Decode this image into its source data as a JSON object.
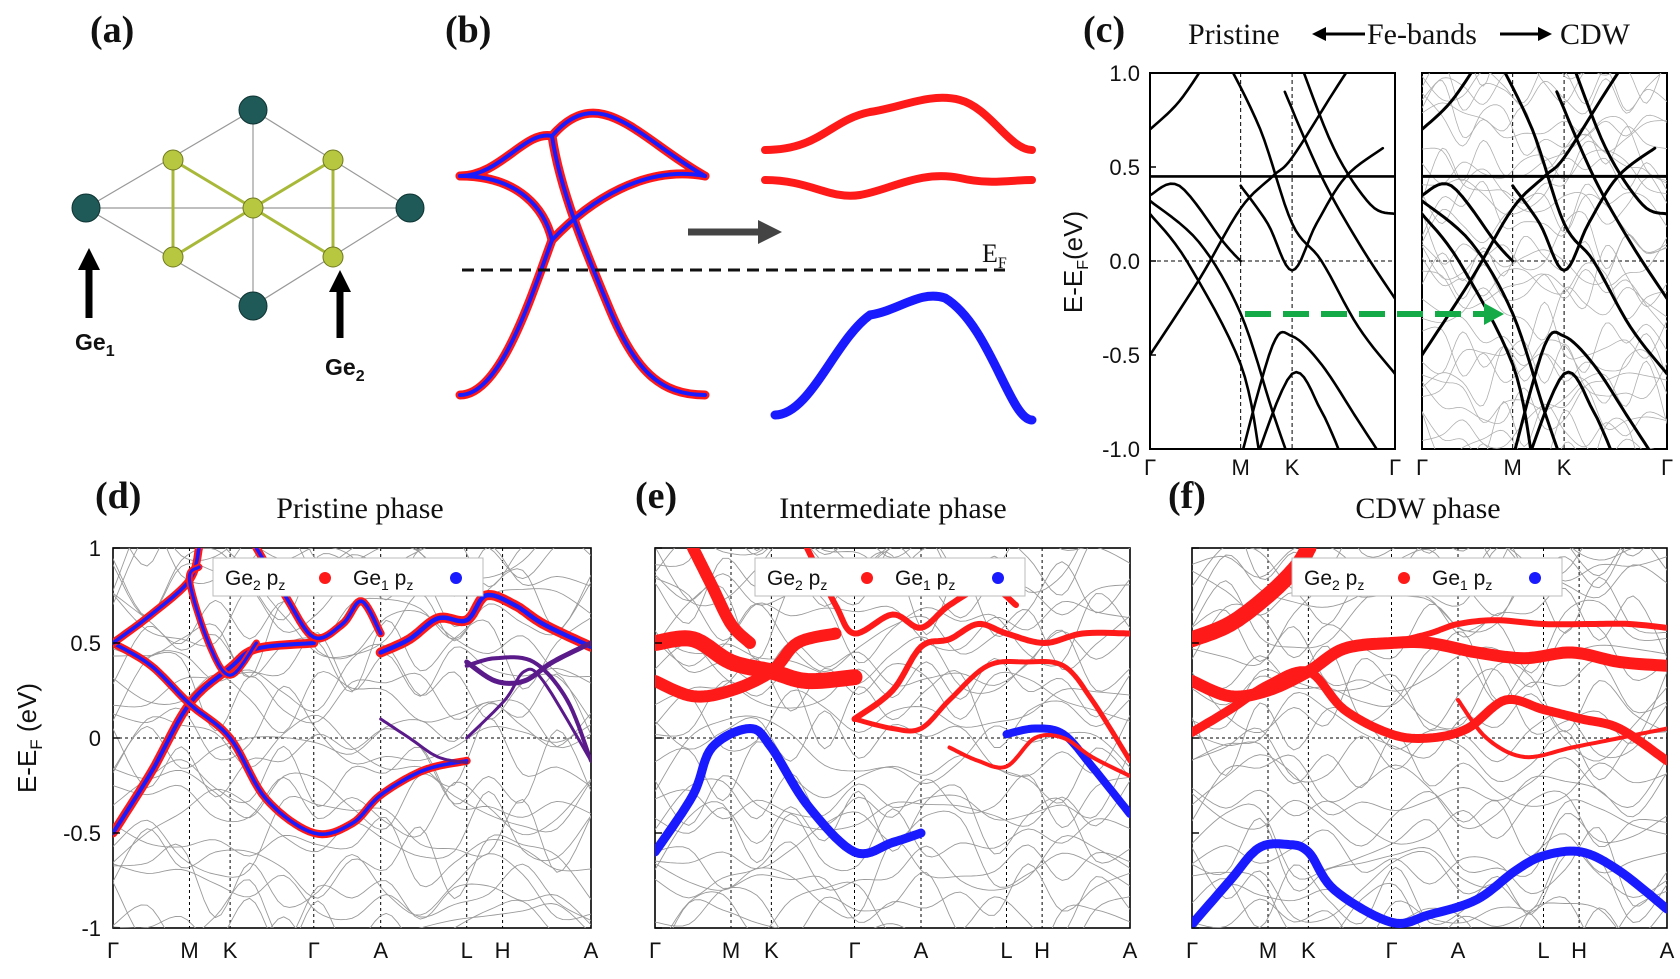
{
  "panels": {
    "a": {
      "label": "(a)",
      "atom_labels": {
        "ge1": "Ge",
        "ge1_sub": "1",
        "ge2": "Ge",
        "ge2_sub": "2"
      }
    },
    "b": {
      "label": "(b)",
      "ef_label": "E",
      "ef_sub": "F"
    },
    "c": {
      "label": "(c)",
      "title_left": "Pristine",
      "title_mid": "Fe-bands",
      "title_right": "CDW",
      "ylabel_main": "E-E",
      "ylabel_sub": "F",
      "ylabel_unit": "(eV)"
    },
    "d": {
      "label": "(d)",
      "title": "Pristine phase"
    },
    "e": {
      "label": "(e)",
      "title": "Intermediate phase"
    },
    "f": {
      "label": "(f)",
      "title": "CDW phase"
    }
  },
  "legend": {
    "ge2_main": "Ge",
    "ge2_sub": "2",
    "ge2_orb": " p",
    "ge2_orb_sub": "z",
    "ge1_main": "Ge",
    "ge1_sub": "1",
    "ge1_orb": " p",
    "ge1_orb_sub": "z"
  },
  "colors": {
    "ge2": "#ff1a1a",
    "ge1": "#1a1aff",
    "mixed": "#5a1a8a",
    "green": "#13aa47",
    "gray": "#9a9a9a"
  },
  "chart_data": [
    {
      "id": "c",
      "type": "line",
      "title": "Pristine ← Fe-bands → CDW",
      "ylabel": "E-E_F(eV)",
      "ylim": [
        -1.0,
        1.0
      ],
      "yticks": [
        "1.0",
        "0.5",
        "0.0",
        "-0.5",
        "-1.0"
      ],
      "xticks_left": [
        "Γ",
        "M",
        "K",
        "Γ"
      ],
      "xticks_right": [
        "Γ",
        "M",
        "K",
        "Γ"
      ]
    },
    {
      "id": "d",
      "type": "line",
      "title": "Pristine phase",
      "ylabel": "E-E_F (eV)",
      "ylim": [
        -1,
        1
      ],
      "yticks": [
        "1",
        "0.5",
        "0",
        "-0.5",
        "-1"
      ],
      "xticks": [
        "Γ",
        "M",
        "K",
        "Γ",
        "A",
        "L",
        "H",
        "A"
      ],
      "series": [
        {
          "name": "Ge2 pz"
        },
        {
          "name": "Ge1 pz"
        }
      ]
    },
    {
      "id": "e",
      "type": "line",
      "title": "Intermediate phase",
      "ylim": [
        -1,
        1
      ],
      "xticks": [
        "Γ",
        "M",
        "K",
        "Γ",
        "A",
        "L",
        "H",
        "A"
      ],
      "series": [
        {
          "name": "Ge2 pz"
        },
        {
          "name": "Ge1 pz"
        }
      ]
    },
    {
      "id": "f",
      "type": "line",
      "title": "CDW phase",
      "ylim": [
        -1,
        1
      ],
      "xticks": [
        "Γ",
        "M",
        "K",
        "Γ",
        "A",
        "L",
        "H",
        "A"
      ],
      "series": [
        {
          "name": "Ge2 pz"
        },
        {
          "name": "Ge1 pz"
        }
      ]
    }
  ]
}
